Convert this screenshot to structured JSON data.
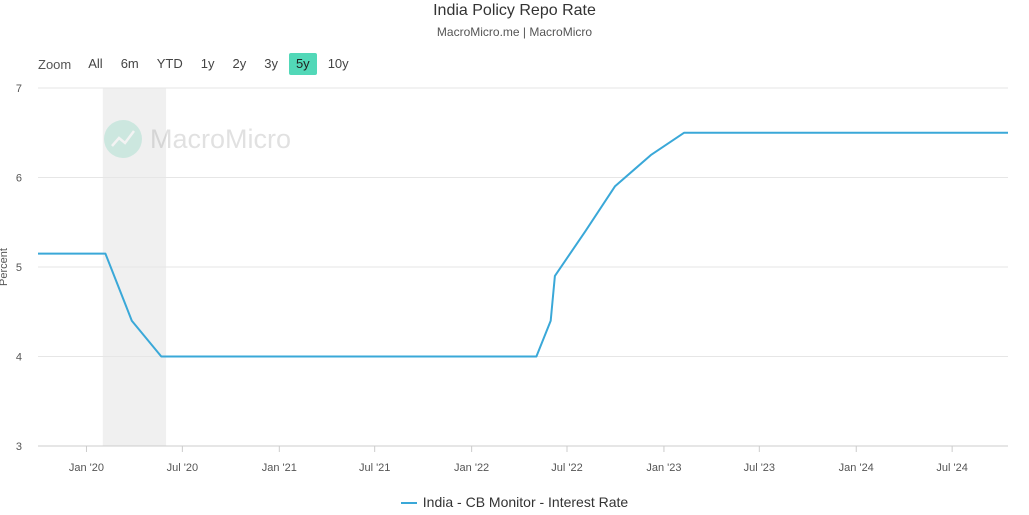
{
  "header": {
    "title": "India Policy Repo Rate",
    "subtitle": "MacroMicro.me | MacroMicro"
  },
  "range_selector": {
    "zoom_label": "Zoom",
    "buttons": [
      "All",
      "6m",
      "YTD",
      "1y",
      "2y",
      "3y",
      "5y",
      "10y"
    ],
    "selected": "5y"
  },
  "watermark": {
    "text": "MacroMicro"
  },
  "colors": {
    "line": "#3aa8d8",
    "accent": "#52d8b8",
    "shade": "#f0f0f0"
  },
  "chart_data": {
    "type": "line",
    "title": "India Policy Repo Rate",
    "ylabel": "Percent",
    "xlabel": "",
    "ylim": [
      3,
      7
    ],
    "xlim": [
      "2019-10-01",
      "2024-10-15"
    ],
    "y_ticks": [
      "3",
      "4",
      "5",
      "6",
      "7"
    ],
    "x_ticks": [
      {
        "label": "Jan '20",
        "date": "2020-01-01"
      },
      {
        "label": "Jul '20",
        "date": "2020-07-01"
      },
      {
        "label": "Jan '21",
        "date": "2021-01-01"
      },
      {
        "label": "Jul '21",
        "date": "2021-07-01"
      },
      {
        "label": "Jan '22",
        "date": "2022-01-01"
      },
      {
        "label": "Jul '22",
        "date": "2022-07-01"
      },
      {
        "label": "Jan '23",
        "date": "2023-01-01"
      },
      {
        "label": "Jul '23",
        "date": "2023-07-01"
      },
      {
        "label": "Jan '24",
        "date": "2024-01-01"
      },
      {
        "label": "Jul '24",
        "date": "2024-07-01"
      }
    ],
    "shaded_ranges": [
      [
        "2020-02-01",
        "2020-05-31"
      ]
    ],
    "grid": true,
    "legend_position": "bottom-center",
    "series": [
      {
        "name": "India - CB Monitor - Interest Rate",
        "points": [
          [
            "2019-10-01",
            5.15
          ],
          [
            "2020-02-06",
            5.15
          ],
          [
            "2020-03-27",
            4.4
          ],
          [
            "2020-05-22",
            4.0
          ],
          [
            "2022-05-04",
            4.0
          ],
          [
            "2022-05-31",
            4.4
          ],
          [
            "2022-06-08",
            4.9
          ],
          [
            "2022-08-05",
            5.4
          ],
          [
            "2022-09-30",
            5.9
          ],
          [
            "2022-12-07",
            6.25
          ],
          [
            "2023-02-08",
            6.5
          ],
          [
            "2024-10-15",
            6.5
          ]
        ]
      }
    ]
  }
}
